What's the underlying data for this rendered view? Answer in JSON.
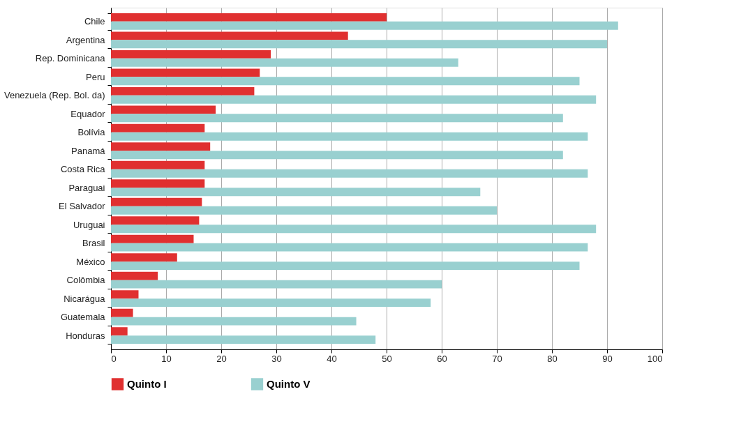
{
  "chart_data": {
    "type": "bar",
    "orientation": "horizontal",
    "categories": [
      "Chile",
      "Argentina",
      "Rep. Dominicana",
      "Peru",
      "Venezuela (Rep. Bol. da)",
      "Equador",
      "Bolívia",
      "Panamá",
      "Costa Rica",
      "Paraguai",
      "El Salvador",
      "Uruguai",
      "Brasil",
      "México",
      "Colômbia",
      "Nicarágua",
      "Guatemala",
      "Honduras"
    ],
    "series": [
      {
        "name": "Quinto I",
        "color": "#e03030",
        "values": [
          50,
          43,
          29,
          27,
          26,
          19,
          17,
          18,
          17,
          17,
          16.5,
          16,
          15,
          12,
          8.5,
          5,
          4,
          3
        ]
      },
      {
        "name": "Quinto V",
        "color": "#99d0d0",
        "values": [
          92,
          90,
          63,
          85,
          88,
          82,
          86.5,
          82,
          86.5,
          67,
          70,
          88,
          86.5,
          85,
          60,
          58,
          44.5,
          48
        ]
      }
    ],
    "xlim": [
      0,
      100
    ],
    "xticks": [
      0,
      10,
      20,
      30,
      40,
      50,
      60,
      70,
      80,
      90,
      100
    ],
    "grid": "x",
    "legend": "bottom"
  }
}
